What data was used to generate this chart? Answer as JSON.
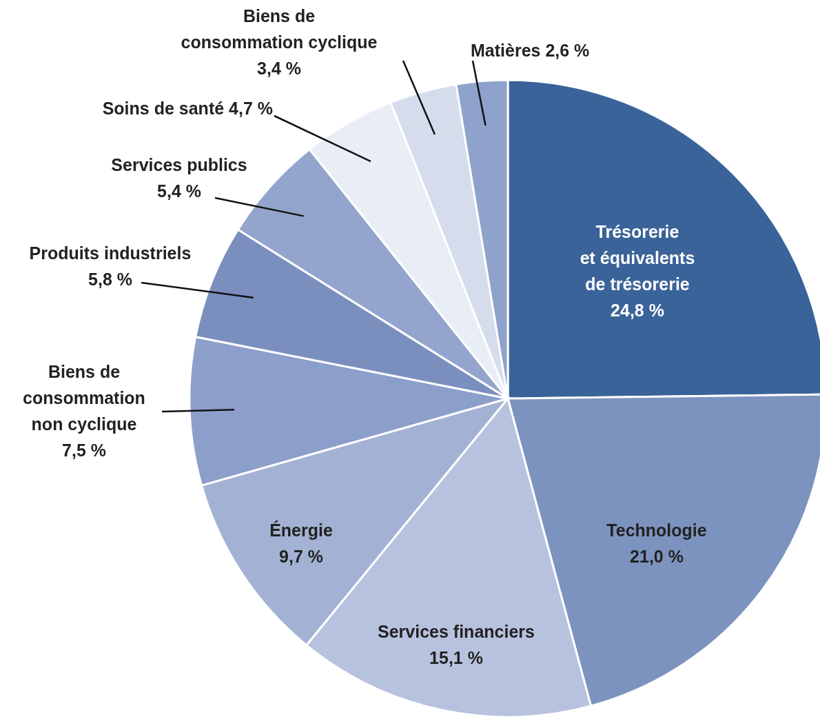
{
  "chart_data": {
    "type": "pie",
    "categories": [
      "Trésorerie et équivalents de trésorerie",
      "Technologie",
      "Services financiers",
      "Énergie",
      "Biens de consommation non cyclique",
      "Produits industriels",
      "Services publics",
      "Soins de santé",
      "Biens de consommation cyclique",
      "Matières"
    ],
    "values": [
      24.8,
      21.0,
      15.1,
      9.7,
      7.5,
      5.8,
      5.4,
      4.7,
      3.4,
      2.6
    ],
    "value_labels": [
      "24,8 %",
      "21,0 %",
      "15,1 %",
      "9,7 %",
      "7,5 %",
      "5,8 %",
      "5,4 %",
      "4,7 %",
      "3,4 %",
      "2,6 %"
    ],
    "colors": [
      "#3a6399",
      "#7d93bf",
      "#b7c2de",
      "#a3b2d4",
      "#8c9fcb",
      "#7b8fbf",
      "#93a5cc",
      "#e9edf6",
      "#d5dcec",
      "#8ea2cb"
    ]
  }
}
